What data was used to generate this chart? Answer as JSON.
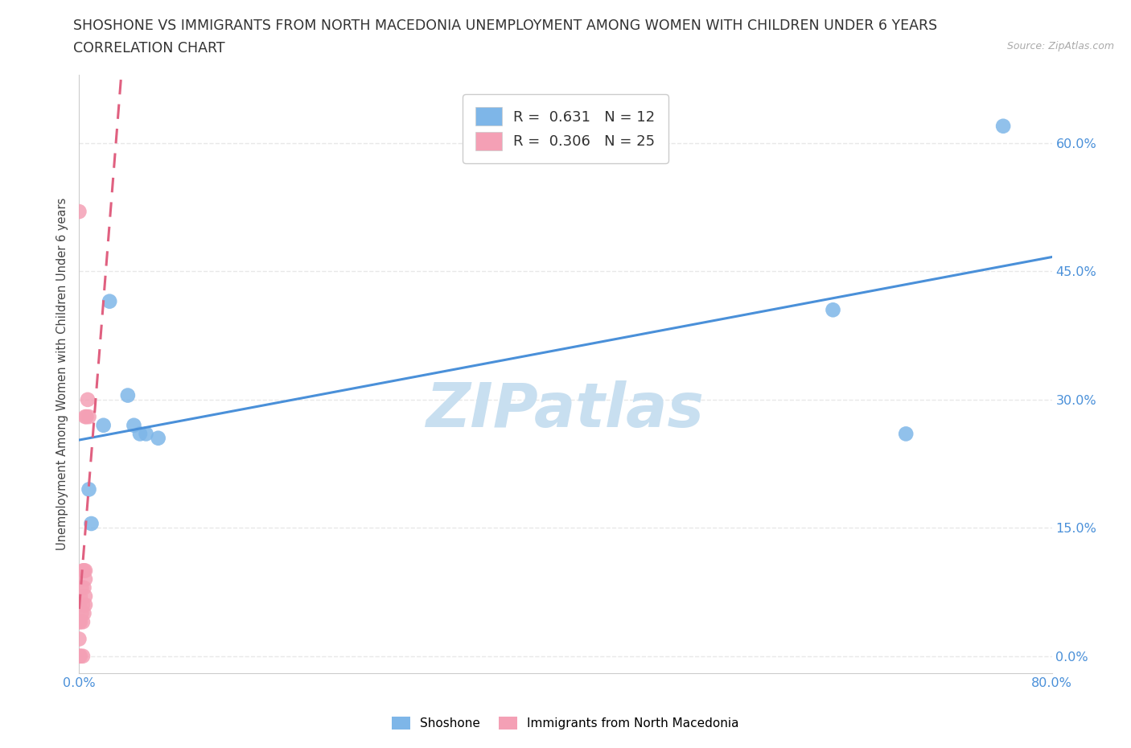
{
  "title_line1": "SHOSHONE VS IMMIGRANTS FROM NORTH MACEDONIA UNEMPLOYMENT AMONG WOMEN WITH CHILDREN UNDER 6 YEARS",
  "title_line2": "CORRELATION CHART",
  "source_text": "Source: ZipAtlas.com",
  "ylabel": "Unemployment Among Women with Children Under 6 years",
  "xlim": [
    0.0,
    0.8
  ],
  "ylim": [
    -0.02,
    0.68
  ],
  "xticks": [
    0.0,
    0.1,
    0.2,
    0.3,
    0.4,
    0.5,
    0.6,
    0.7,
    0.8
  ],
  "xticklabels": [
    "0.0%",
    "",
    "",
    "",
    "",
    "",
    "",
    "",
    "80.0%"
  ],
  "yticks": [
    0.0,
    0.15,
    0.3,
    0.45,
    0.6
  ],
  "yticklabels": [
    "0.0%",
    "15.0%",
    "30.0%",
    "45.0%",
    "60.0%"
  ],
  "shoshone_color": "#7eb6e8",
  "macedonia_color": "#f4a0b5",
  "shoshone_line_color": "#4a90d9",
  "macedonia_line_color": "#e06080",
  "watermark_color": "#c8dff0",
  "shoshone_x": [
    0.008,
    0.01,
    0.02,
    0.025,
    0.04,
    0.045,
    0.05,
    0.055,
    0.065,
    0.62,
    0.68,
    0.76
  ],
  "shoshone_y": [
    0.195,
    0.155,
    0.27,
    0.415,
    0.305,
    0.27,
    0.26,
    0.26,
    0.255,
    0.405,
    0.26,
    0.62
  ],
  "macedonia_x": [
    0.0,
    0.0,
    0.0,
    0.0,
    0.0,
    0.001,
    0.001,
    0.001,
    0.002,
    0.002,
    0.003,
    0.003,
    0.003,
    0.003,
    0.004,
    0.004,
    0.004,
    0.005,
    0.005,
    0.005,
    0.005,
    0.005,
    0.006,
    0.007,
    0.008
  ],
  "macedonia_y": [
    0.0,
    0.02,
    0.04,
    0.06,
    0.52,
    0.0,
    0.04,
    0.07,
    0.05,
    0.08,
    0.0,
    0.04,
    0.06,
    0.1,
    0.05,
    0.08,
    0.1,
    0.06,
    0.07,
    0.09,
    0.1,
    0.28,
    0.28,
    0.3,
    0.28
  ],
  "legend_label_shoshone": "R =  0.631   N = 12",
  "legend_label_macedonia": "R =  0.306   N = 25",
  "background_color": "#ffffff",
  "grid_color": "#e8e8e8",
  "title_fontsize": 12.5,
  "axis_label_fontsize": 10.5,
  "tick_fontsize": 11.5,
  "legend_fontsize": 13
}
